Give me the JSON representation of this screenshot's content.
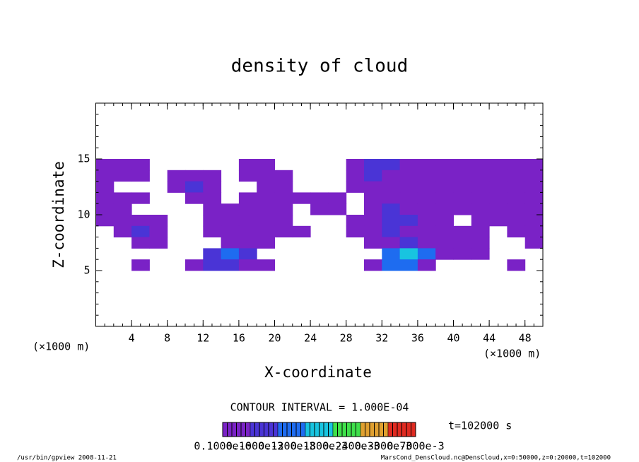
{
  "chart_data": {
    "type": "heatmap",
    "title": "density of cloud",
    "x_label": "X-coordinate",
    "y_label": "Z-coordinate",
    "x_unit": "(×1000 m)",
    "y_unit": "(×1000 m)",
    "xlim": [
      0,
      50
    ],
    "ylim": [
      0,
      20
    ],
    "xticks": [
      4,
      8,
      12,
      16,
      20,
      24,
      28,
      32,
      36,
      40,
      44,
      48
    ],
    "yticks": [
      5,
      10,
      15
    ],
    "minor_tick_step": 1,
    "x": [
      1,
      3,
      5,
      7,
      9,
      11,
      13,
      15,
      17,
      19,
      21,
      23,
      25,
      27,
      29,
      31,
      33,
      35,
      37,
      39,
      41,
      43,
      45,
      47,
      49
    ],
    "z": [
      14.5,
      13.5,
      12.5,
      11.5,
      10.5,
      9.5,
      8.5,
      7.5,
      6.5,
      5.5
    ],
    "values": [
      [
        5e-05,
        5e-05,
        5e-05,
        null,
        null,
        null,
        null,
        null,
        5e-05,
        5e-05,
        null,
        null,
        null,
        null,
        5e-05,
        0.0001,
        0.0001,
        5e-05,
        5e-05,
        5e-05,
        5e-05,
        5e-05,
        5e-05,
        5e-05,
        5e-05
      ],
      [
        5e-05,
        5e-05,
        5e-05,
        null,
        5e-05,
        5e-05,
        5e-05,
        null,
        5e-05,
        5e-05,
        5e-05,
        null,
        null,
        null,
        5e-05,
        0.0001,
        5e-05,
        5e-05,
        5e-05,
        5e-05,
        5e-05,
        5e-05,
        5e-05,
        5e-05,
        5e-05
      ],
      [
        5e-05,
        null,
        null,
        null,
        5e-05,
        0.0001,
        5e-05,
        null,
        null,
        5e-05,
        5e-05,
        null,
        null,
        null,
        5e-05,
        5e-05,
        5e-05,
        5e-05,
        5e-05,
        5e-05,
        5e-05,
        5e-05,
        5e-05,
        5e-05,
        5e-05
      ],
      [
        5e-05,
        5e-05,
        5e-05,
        null,
        null,
        5e-05,
        5e-05,
        null,
        5e-05,
        5e-05,
        5e-05,
        5e-05,
        5e-05,
        5e-05,
        null,
        5e-05,
        5e-05,
        5e-05,
        5e-05,
        5e-05,
        5e-05,
        5e-05,
        5e-05,
        5e-05,
        5e-05
      ],
      [
        5e-05,
        5e-05,
        null,
        null,
        null,
        null,
        5e-05,
        5e-05,
        5e-05,
        5e-05,
        5e-05,
        null,
        5e-05,
        5e-05,
        null,
        5e-05,
        0.0001,
        5e-05,
        5e-05,
        5e-05,
        5e-05,
        5e-05,
        5e-05,
        5e-05,
        5e-05
      ],
      [
        5e-05,
        5e-05,
        5e-05,
        5e-05,
        null,
        null,
        5e-05,
        5e-05,
        5e-05,
        5e-05,
        5e-05,
        null,
        null,
        null,
        5e-05,
        5e-05,
        0.0001,
        0.0001,
        5e-05,
        5e-05,
        null,
        5e-05,
        5e-05,
        5e-05,
        5e-05
      ],
      [
        null,
        5e-05,
        0.0001,
        5e-05,
        null,
        null,
        5e-05,
        5e-05,
        5e-05,
        5e-05,
        5e-05,
        5e-05,
        null,
        null,
        5e-05,
        5e-05,
        0.0001,
        5e-05,
        5e-05,
        5e-05,
        5e-05,
        5e-05,
        null,
        5e-05,
        5e-05
      ],
      [
        null,
        null,
        5e-05,
        5e-05,
        null,
        null,
        null,
        5e-05,
        5e-05,
        5e-05,
        null,
        null,
        null,
        null,
        null,
        5e-05,
        5e-05,
        0.0001,
        5e-05,
        5e-05,
        5e-05,
        5e-05,
        null,
        null,
        5e-05
      ],
      [
        null,
        null,
        null,
        null,
        null,
        null,
        0.0001,
        0.0002,
        0.0001,
        null,
        null,
        null,
        null,
        null,
        null,
        null,
        0.0002,
        0.0003,
        0.0002,
        5e-05,
        5e-05,
        5e-05,
        null,
        null,
        null
      ],
      [
        null,
        null,
        5e-05,
        null,
        null,
        5e-05,
        0.0001,
        0.0001,
        5e-05,
        5e-05,
        null,
        null,
        null,
        null,
        null,
        5e-05,
        0.0002,
        0.0002,
        5e-05,
        null,
        null,
        null,
        null,
        5e-05,
        null
      ]
    ],
    "levels": [
      0,
      0.0001,
      0.0002,
      0.0003,
      0.0004,
      0.0005,
      0.0006
    ],
    "colors": [
      "#7a22c6",
      "#4a34d6",
      "#1e6cf0",
      "#18c4e0",
      "#3ee04a",
      "#e0a030",
      "#e02a20"
    ],
    "contour_interval": "CONTOUR INTERVAL = 1.000E-04",
    "colorbar_labels": [
      "0.1000e-6",
      "0.1000e-3",
      "0.1200e-3",
      "0.1800e-3",
      "0.2400e-3",
      "0.3000e-3",
      "0.7000e-3"
    ],
    "time_label": "t=102000 s",
    "footer_left": "/usr/bin/gpview  2008-11-21",
    "footer_right": "MarsCond_DensCloud.nc@DensCloud,x=0:50000,z=0:20000,t=102000"
  }
}
